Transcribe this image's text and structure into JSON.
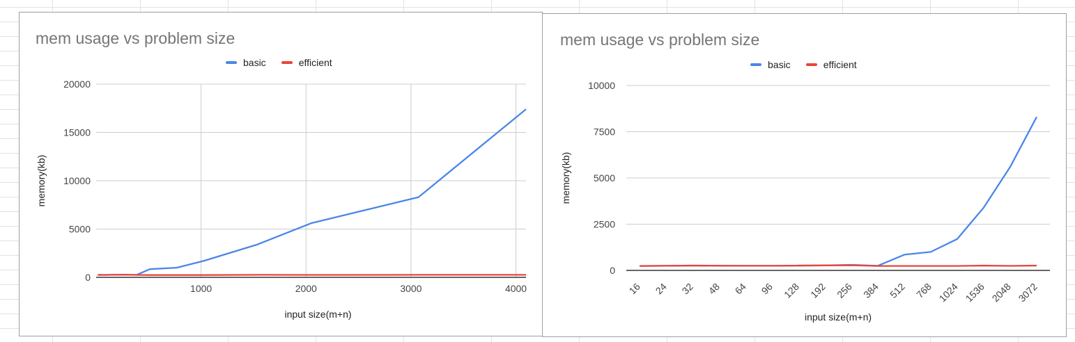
{
  "chart_data": [
    {
      "type": "line",
      "title": "mem usage vs problem size",
      "xlabel": "input size(m+n)",
      "ylabel": "memory(kb)",
      "x_axis": "numeric",
      "xlim": [
        0,
        4096
      ],
      "ylim": [
        0,
        20000
      ],
      "x_ticks": [
        1000,
        2000,
        3000,
        4000
      ],
      "y_ticks": [
        0,
        5000,
        10000,
        15000,
        20000
      ],
      "vertical_grid": true,
      "horizontal_grid": true,
      "legend_position": "top",
      "x": [
        16,
        24,
        32,
        48,
        64,
        96,
        128,
        192,
        256,
        384,
        512,
        768,
        1024,
        1536,
        2048,
        3072,
        4096
      ],
      "series": [
        {
          "name": "basic",
          "color": "#4a86e8",
          "values": [
            240,
            250,
            260,
            255,
            250,
            250,
            260,
            270,
            280,
            250,
            850,
            1000,
            1700,
            3400,
            5600,
            8300,
            17400
          ]
        },
        {
          "name": "efficient",
          "color": "#e8453c",
          "values": [
            240,
            250,
            260,
            255,
            250,
            250,
            260,
            270,
            280,
            250,
            240,
            240,
            240,
            260,
            250,
            260,
            260
          ]
        }
      ]
    },
    {
      "type": "line",
      "title": "mem usage vs problem size",
      "xlabel": "input size(m+n)",
      "ylabel": "memory(kb)",
      "x_axis": "categorical",
      "ylim": [
        0,
        10000
      ],
      "y_ticks": [
        0,
        2500,
        5000,
        7500,
        10000
      ],
      "vertical_grid": false,
      "horizontal_grid": true,
      "legend_position": "top",
      "categories": [
        "16",
        "24",
        "32",
        "48",
        "64",
        "96",
        "128",
        "192",
        "256",
        "384",
        "512",
        "768",
        "1024",
        "1536",
        "2048",
        "3072"
      ],
      "series": [
        {
          "name": "basic",
          "color": "#4a86e8",
          "values": [
            240,
            250,
            260,
            255,
            250,
            250,
            260,
            270,
            300,
            250,
            850,
            1000,
            1700,
            3400,
            5600,
            8300
          ]
        },
        {
          "name": "efficient",
          "color": "#e8453c",
          "values": [
            240,
            250,
            260,
            255,
            250,
            250,
            260,
            270,
            280,
            240,
            240,
            240,
            240,
            260,
            245,
            260
          ]
        }
      ]
    }
  ]
}
